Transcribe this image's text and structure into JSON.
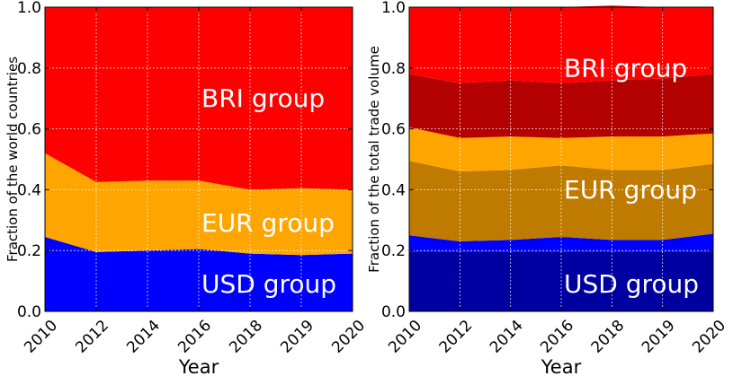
{
  "chart_data": [
    {
      "type": "area",
      "stacked": true,
      "title": "",
      "xlabel": "Year",
      "ylabel": "Fraction of the world countries",
      "x": [
        "2010",
        "2012",
        "2014",
        "2016",
        "2018",
        "2019",
        "2020"
      ],
      "ylim": [
        0,
        1
      ],
      "yticks": [
        "0.0",
        "0.2",
        "0.4",
        "0.6",
        "0.8",
        "1.0"
      ],
      "grid": true,
      "series": [
        {
          "name": "USD group",
          "values": [
            0.245,
            0.195,
            0.2,
            0.205,
            0.19,
            0.185,
            0.19
          ],
          "color": "#0000ff"
        },
        {
          "name": "EUR group",
          "values": [
            0.275,
            0.23,
            0.23,
            0.225,
            0.21,
            0.22,
            0.21
          ],
          "color": "#ffa500"
        },
        {
          "name": "BRI group",
          "values": [
            0.48,
            0.575,
            0.57,
            0.57,
            0.6,
            0.595,
            0.6
          ],
          "color": "#ff0000"
        }
      ]
    },
    {
      "type": "area",
      "stacked": true,
      "title": "",
      "xlabel": "Year",
      "ylabel": "Fraction of the total trade volume",
      "x": [
        "2010",
        "2012",
        "2014",
        "2016",
        "2018",
        "2019",
        "2020"
      ],
      "ylim": [
        0,
        1
      ],
      "yticks": [
        "0.0",
        "0.2",
        "0.4",
        "0.6",
        "0.8",
        "1.0"
      ],
      "grid": true,
      "series": [
        {
          "name": "USD group (inner)",
          "values": [
            0.195,
            0.195,
            0.195,
            0.195,
            0.195,
            0.195,
            0.195
          ],
          "color": "#0000a0"
        },
        {
          "name": "USD group (outer)",
          "values": [
            0.055,
            0.035,
            0.04,
            0.05,
            0.04,
            0.04,
            0.06
          ],
          "color": "#0000ff"
        },
        {
          "name": "EUR group (inner)",
          "values": [
            0.245,
            0.23,
            0.23,
            0.235,
            0.23,
            0.23,
            0.23
          ],
          "color": "#bf7a00"
        },
        {
          "name": "EUR group (outer)",
          "values": [
            0.11,
            0.11,
            0.11,
            0.09,
            0.11,
            0.11,
            0.1
          ],
          "color": "#ffa500"
        },
        {
          "name": "BRI group (inner)",
          "values": [
            0.175,
            0.18,
            0.185,
            0.18,
            0.185,
            0.19,
            0.195
          ],
          "color": "#b30000"
        },
        {
          "name": "BRI group (outer)",
          "values": [
            0.22,
            0.25,
            0.24,
            0.25,
            0.245,
            0.235,
            0.22
          ],
          "color": "#ff0000"
        }
      ]
    }
  ],
  "labels": {
    "left": [
      {
        "text": "BRI group",
        "y": 0.7
      },
      {
        "text": "EUR group",
        "y": 0.29
      },
      {
        "text": "USD group",
        "y": 0.09
      }
    ],
    "right": [
      {
        "text": "BRI group",
        "y": 0.8
      },
      {
        "text": "EUR group",
        "y": 0.4
      },
      {
        "text": "USD group",
        "y": 0.09
      }
    ]
  },
  "colors": {
    "grid": "#ffffff",
    "axis": "#000000",
    "label_text": "#ffffff"
  }
}
